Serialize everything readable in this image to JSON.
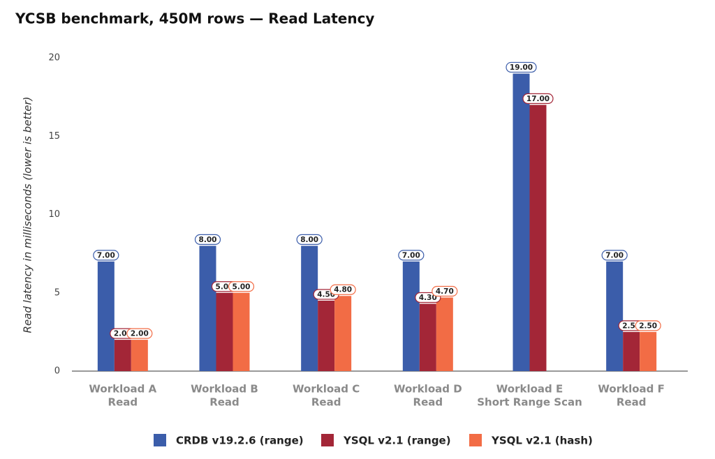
{
  "chart_data": {
    "type": "bar",
    "title": "YCSB benchmark, 450M rows — Read Latency",
    "y_label": "Read latency in milliseconds (lower is better)",
    "categories": [
      [
        "Workload A",
        "Read"
      ],
      [
        "Workload B",
        "Read"
      ],
      [
        "Workload C",
        "Read"
      ],
      [
        "Workload D",
        "Read"
      ],
      [
        "Workload E",
        "Short Range Scan"
      ],
      [
        "Workload F",
        "Read"
      ]
    ],
    "series": [
      {
        "name": "CRDB v19.2.6 (range)",
        "color": "#3b5daa",
        "values": [
          7,
          8,
          8,
          7,
          19,
          7
        ],
        "value_labels": [
          "7.00",
          "8.00",
          "8.00",
          "7.00",
          "19.00",
          "7.00"
        ]
      },
      {
        "name": "YSQL v2.1 (range)",
        "color": "#a32637",
        "values": [
          2,
          5,
          4.5,
          4.3,
          17,
          2.5
        ],
        "value_labels": [
          "2.00",
          "5.00",
          "4.50",
          "4.30",
          "17.00",
          "2.50"
        ]
      },
      {
        "name": "YSQL v2.1 (hash)",
        "color": "#f26c45",
        "values": [
          2,
          5,
          4.8,
          4.7,
          null,
          2.5
        ],
        "value_labels": [
          "2.00",
          "5.00",
          "4.80",
          "4.70",
          null,
          "2.50"
        ]
      }
    ],
    "ylim": [
      0,
      20
    ],
    "yticks": [
      0,
      5,
      10,
      15,
      20
    ],
    "grid": false
  }
}
